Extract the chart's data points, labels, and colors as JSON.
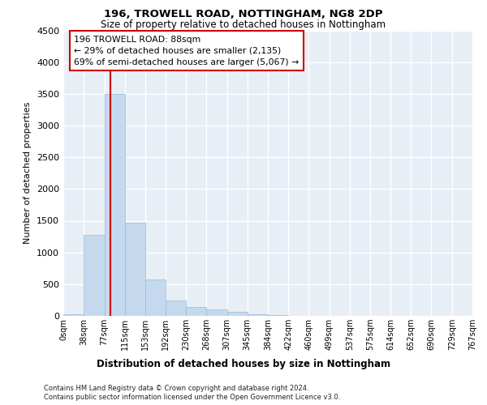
{
  "title1": "196, TROWELL ROAD, NOTTINGHAM, NG8 2DP",
  "title2": "Size of property relative to detached houses in Nottingham",
  "xlabel": "Distribution of detached houses by size in Nottingham",
  "ylabel": "Number of detached properties",
  "bar_color": "#c5d9ee",
  "bar_edge_color": "#9ab8d8",
  "background_color": "#e8eef6",
  "grid_color": "#ffffff",
  "red_line_x": 88,
  "annotation_line1": "196 TROWELL ROAD: 88sqm",
  "annotation_line2": "← 29% of detached houses are smaller (2,135)",
  "annotation_line3": "69% of semi-detached houses are larger (5,067) →",
  "footnote1": "Contains HM Land Registry data © Crown copyright and database right 2024.",
  "footnote2": "Contains public sector information licensed under the Open Government Licence v3.0.",
  "bin_edges": [
    0,
    38,
    77,
    115,
    153,
    192,
    230,
    268,
    307,
    345,
    384,
    422,
    460,
    499,
    537,
    575,
    614,
    652,
    690,
    729,
    767
  ],
  "bin_counts": [
    30,
    1280,
    3500,
    1470,
    570,
    245,
    145,
    100,
    60,
    30,
    15,
    5,
    5,
    0,
    0,
    0,
    0,
    0,
    0,
    0
  ],
  "ylim": [
    0,
    4500
  ],
  "yticks": [
    0,
    500,
    1000,
    1500,
    2000,
    2500,
    3000,
    3500,
    4000,
    4500
  ],
  "fig_width": 6.0,
  "fig_height": 5.0,
  "dpi": 100
}
